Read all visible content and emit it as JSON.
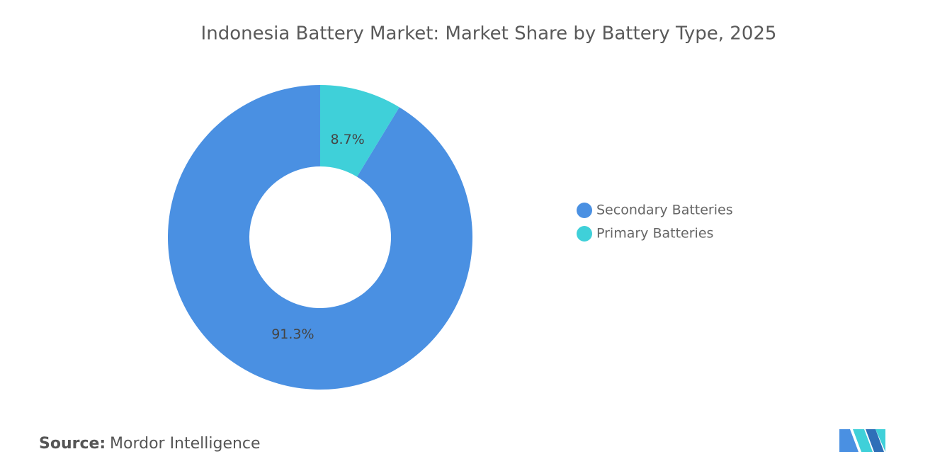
{
  "chart_data": {
    "type": "donut",
    "title": "Indonesia Battery Market: Market Share by Battery Type, 2025",
    "categories": [
      "Secondary Batteries",
      "Primary Batteries"
    ],
    "values": [
      91.3,
      8.7
    ],
    "value_labels": [
      "91.3%",
      "8.7%"
    ],
    "colors": [
      "#4a90e2",
      "#3fd0d9"
    ],
    "legend": "right"
  },
  "source_label": "Source:",
  "source": "Mordor Intelligence"
}
